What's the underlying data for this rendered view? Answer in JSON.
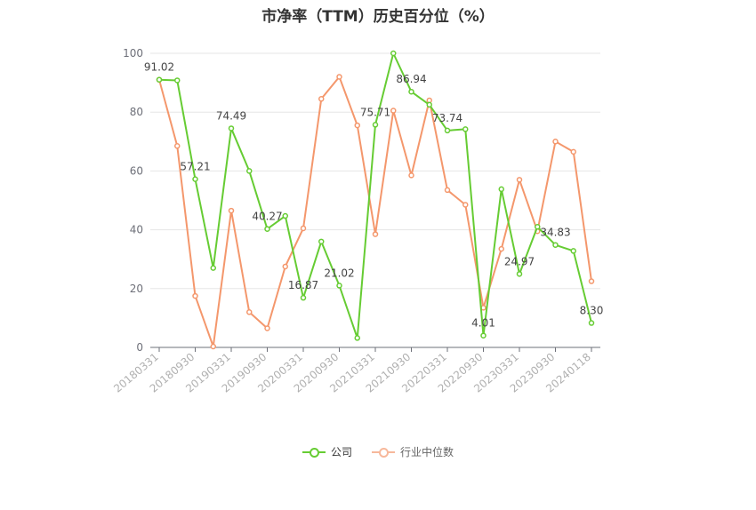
{
  "chart_data": {
    "type": "line",
    "title": "市净率（TTM）历史百分位（%）",
    "ylim": [
      0,
      100
    ],
    "y_ticks": [
      "0",
      "20",
      "40",
      "60",
      "80",
      "100"
    ],
    "grid": true,
    "legend_position": "bottom",
    "x_tick_labels": [
      "20180331",
      "20180930",
      "20190331",
      "20190930",
      "20200331",
      "20200930",
      "20210331",
      "20210930",
      "20220331",
      "20220930",
      "20230331",
      "20230930",
      "20240118"
    ],
    "x": [
      "20180331",
      "20180630",
      "20180930",
      "20181231",
      "20190331",
      "20190630",
      "20190930",
      "20191231",
      "20200331",
      "20200630",
      "20200930",
      "20201231",
      "20210331",
      "20210630",
      "20210930",
      "20211231",
      "20220331",
      "20220630",
      "20220930",
      "20221231",
      "20230331",
      "20230630",
      "20230930",
      "20231231",
      "20240118"
    ],
    "series": [
      {
        "name": "公司",
        "color": "#66cc33",
        "values": [
          91.02,
          90.8,
          57.21,
          27,
          74.49,
          60,
          40.27,
          44.7,
          16.87,
          36,
          21.02,
          3.2,
          75.71,
          100,
          86.94,
          82.5,
          73.74,
          74.2,
          4.01,
          53.8,
          24.97,
          41,
          34.83,
          32.8,
          8.3
        ],
        "labels": [
          "91.02",
          "",
          "57.21",
          "",
          "74.49",
          "",
          "40.27",
          "",
          "16.87",
          "",
          "21.02",
          "",
          "75.71",
          "",
          "86.94",
          "",
          "73.74",
          "",
          "4.01",
          "",
          "24.97",
          "",
          "34.83",
          "",
          "8.30"
        ]
      },
      {
        "name": "行业中位数",
        "color": "#f4976c",
        "values": [
          91,
          68.5,
          17.5,
          0.3,
          46.5,
          12,
          6.5,
          27.5,
          40.5,
          84.5,
          92,
          75.5,
          38.5,
          80.5,
          58.5,
          84,
          53.5,
          48.5,
          13.5,
          33.5,
          57,
          39.5,
          70,
          66.5,
          22.5
        ]
      }
    ]
  }
}
